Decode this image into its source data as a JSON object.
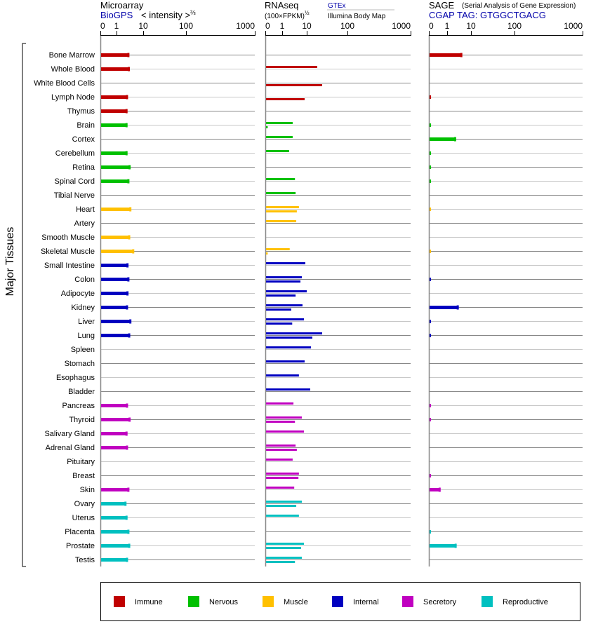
{
  "headers": {
    "microarray": {
      "title": "Microarray",
      "source": "BioGPS",
      "unit": "< intensity >",
      "unit_exponent": "⅔"
    },
    "rnaseq": {
      "title": "RNAseq",
      "unit": "(100×FPKM)",
      "unit_exponent": "½",
      "source_upper": "GTEx",
      "source_lower": "Illumina Body Map"
    },
    "sage": {
      "title": "SAGE",
      "subtitle": "(Serial Analysis of Gene Expression)",
      "tag": "CGAP TAG: GTGGCTGACG"
    }
  },
  "y_axis_label": "Major Tissues",
  "colors": {
    "Immune": "#c00000",
    "Nervous": "#00c000",
    "Muscle": "#ffc000",
    "Internal": "#0000c0",
    "Secretory": "#c000c0",
    "Reproductive": "#00c0c0"
  },
  "legend": [
    "Immune",
    "Nervous",
    "Muscle",
    "Internal",
    "Secretory",
    "Reproductive"
  ],
  "chart_data": {
    "type": "bar",
    "orientation": "horizontal",
    "tick_labels": [
      "0",
      "1",
      "10",
      "100",
      "1000"
    ],
    "xlim": [
      0,
      1000
    ],
    "grid": true,
    "legend_position": "bottom",
    "categories": [
      "Bone Marrow",
      "Whole Blood",
      "White Blood Cells",
      "Lymph Node",
      "Thymus",
      "Brain",
      "Cortex",
      "Cerebellum",
      "Retina",
      "Spinal Cord",
      "Tibial Nerve",
      "Heart",
      "Artery",
      "Smooth Muscle",
      "Skeletal Muscle",
      "Small Intestine",
      "Colon",
      "Adipocyte",
      "Kidney",
      "Liver",
      "Lung",
      "Spleen",
      "Stomach",
      "Esophagus",
      "Bladder",
      "Pancreas",
      "Thyroid",
      "Salivary Gland",
      "Adrenal Gland",
      "Pituitary",
      "Breast",
      "Skin",
      "Ovary",
      "Uterus",
      "Placenta",
      "Prostate",
      "Testis"
    ],
    "groups": [
      "Immune",
      "Immune",
      "Immune",
      "Immune",
      "Immune",
      "Nervous",
      "Nervous",
      "Nervous",
      "Nervous",
      "Nervous",
      "Nervous",
      "Muscle",
      "Muscle",
      "Muscle",
      "Muscle",
      "Internal",
      "Internal",
      "Internal",
      "Internal",
      "Internal",
      "Internal",
      "Internal",
      "Internal",
      "Internal",
      "Internal",
      "Secretory",
      "Secretory",
      "Secretory",
      "Secretory",
      "Secretory",
      "Secretory",
      "Secretory",
      "Reproductive",
      "Reproductive",
      "Reproductive",
      "Reproductive",
      "Reproductive"
    ],
    "microarray": [
      2.7,
      2.8,
      null,
      2.4,
      2.3,
      2.3,
      null,
      2.3,
      3.0,
      2.7,
      null,
      3.2,
      null,
      2.9,
      4.1,
      2.5,
      2.7,
      2.5,
      2.4,
      3.2,
      2.9,
      null,
      null,
      null,
      null,
      2.4,
      3.0,
      2.3,
      2.4,
      null,
      null,
      2.7,
      2.1,
      2.3,
      2.7,
      2.9,
      2.4
    ],
    "rnaseq_gtex": [
      null,
      17.4,
      null,
      null,
      null,
      2.5,
      2.5,
      1.8,
      null,
      3.1,
      3.3,
      4.5,
      3.5,
      null,
      1.9,
      8.2,
      5.9,
      9.4,
      6.3,
      7.2,
      23,
      12.2,
      7.7,
      4.5,
      11.7,
      2.7,
      5.9,
      7.2,
      3.3,
      2.5,
      4.5,
      2.9,
      5.9,
      4.5,
      null,
      7.2,
      5.9
    ],
    "rnaseq_illumina": [
      null,
      null,
      23,
      7.7,
      null,
      0.1,
      null,
      null,
      null,
      null,
      null,
      3.7,
      null,
      null,
      0.1,
      null,
      5.2,
      3.3,
      2.2,
      2.4,
      13.2,
      null,
      null,
      null,
      null,
      null,
      3.1,
      null,
      3.7,
      null,
      4.3,
      null,
      3.5,
      null,
      null,
      5.5,
      3.1
    ],
    "sage": [
      3.8,
      null,
      null,
      0.08,
      null,
      0.08,
      2.1,
      0.08,
      0.08,
      0.08,
      null,
      0.08,
      null,
      null,
      0.08,
      null,
      0.08,
      null,
      2.7,
      0.08,
      0.08,
      null,
      null,
      null,
      null,
      0.08,
      0.08,
      null,
      null,
      null,
      0.08,
      0.57,
      null,
      null,
      0.08,
      2.2,
      null
    ]
  }
}
